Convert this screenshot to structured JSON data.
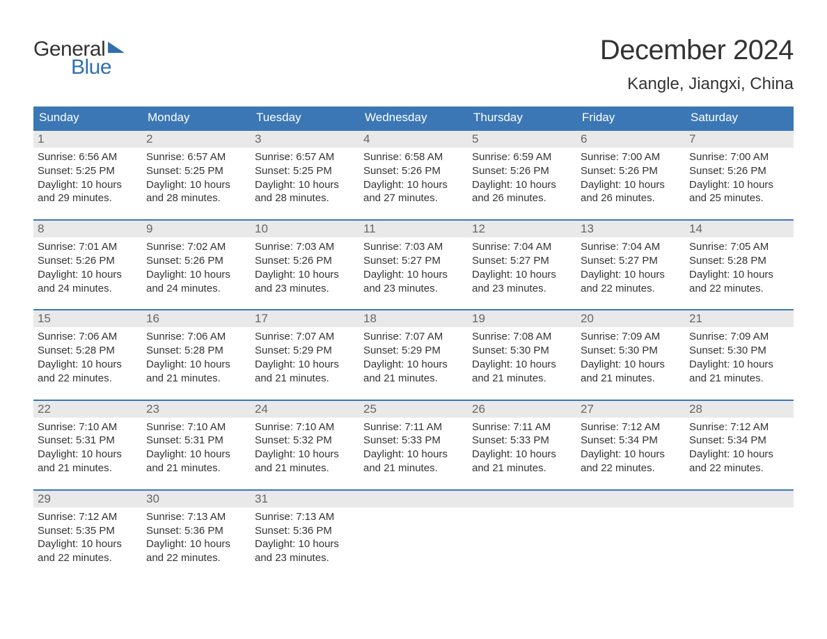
{
  "branding": {
    "logo_word1": "General",
    "logo_word2": "Blue"
  },
  "header": {
    "month_title": "December 2024",
    "location": "Kangle, Jiangxi, China"
  },
  "colors": {
    "header_bar": "#3b77b5",
    "header_text": "#ffffff",
    "day_number_bg": "#e9e9e9",
    "day_number_text": "#666666",
    "body_text": "#333333",
    "logo_accent": "#2f6fae",
    "week_border": "#3b77b5",
    "background": "#ffffff"
  },
  "typography": {
    "month_title_fontsize": 40,
    "location_fontsize": 24,
    "weekday_fontsize": 17,
    "day_number_fontsize": 17,
    "body_fontsize": 15,
    "logo_fontsize": 30
  },
  "weekdays": [
    "Sunday",
    "Monday",
    "Tuesday",
    "Wednesday",
    "Thursday",
    "Friday",
    "Saturday"
  ],
  "weeks": [
    [
      {
        "day": "1",
        "sunrise": "Sunrise: 6:56 AM",
        "sunset": "Sunset: 5:25 PM",
        "daylight1": "Daylight: 10 hours",
        "daylight2": "and 29 minutes."
      },
      {
        "day": "2",
        "sunrise": "Sunrise: 6:57 AM",
        "sunset": "Sunset: 5:25 PM",
        "daylight1": "Daylight: 10 hours",
        "daylight2": "and 28 minutes."
      },
      {
        "day": "3",
        "sunrise": "Sunrise: 6:57 AM",
        "sunset": "Sunset: 5:25 PM",
        "daylight1": "Daylight: 10 hours",
        "daylight2": "and 28 minutes."
      },
      {
        "day": "4",
        "sunrise": "Sunrise: 6:58 AM",
        "sunset": "Sunset: 5:26 PM",
        "daylight1": "Daylight: 10 hours",
        "daylight2": "and 27 minutes."
      },
      {
        "day": "5",
        "sunrise": "Sunrise: 6:59 AM",
        "sunset": "Sunset: 5:26 PM",
        "daylight1": "Daylight: 10 hours",
        "daylight2": "and 26 minutes."
      },
      {
        "day": "6",
        "sunrise": "Sunrise: 7:00 AM",
        "sunset": "Sunset: 5:26 PM",
        "daylight1": "Daylight: 10 hours",
        "daylight2": "and 26 minutes."
      },
      {
        "day": "7",
        "sunrise": "Sunrise: 7:00 AM",
        "sunset": "Sunset: 5:26 PM",
        "daylight1": "Daylight: 10 hours",
        "daylight2": "and 25 minutes."
      }
    ],
    [
      {
        "day": "8",
        "sunrise": "Sunrise: 7:01 AM",
        "sunset": "Sunset: 5:26 PM",
        "daylight1": "Daylight: 10 hours",
        "daylight2": "and 24 minutes."
      },
      {
        "day": "9",
        "sunrise": "Sunrise: 7:02 AM",
        "sunset": "Sunset: 5:26 PM",
        "daylight1": "Daylight: 10 hours",
        "daylight2": "and 24 minutes."
      },
      {
        "day": "10",
        "sunrise": "Sunrise: 7:03 AM",
        "sunset": "Sunset: 5:26 PM",
        "daylight1": "Daylight: 10 hours",
        "daylight2": "and 23 minutes."
      },
      {
        "day": "11",
        "sunrise": "Sunrise: 7:03 AM",
        "sunset": "Sunset: 5:27 PM",
        "daylight1": "Daylight: 10 hours",
        "daylight2": "and 23 minutes."
      },
      {
        "day": "12",
        "sunrise": "Sunrise: 7:04 AM",
        "sunset": "Sunset: 5:27 PM",
        "daylight1": "Daylight: 10 hours",
        "daylight2": "and 23 minutes."
      },
      {
        "day": "13",
        "sunrise": "Sunrise: 7:04 AM",
        "sunset": "Sunset: 5:27 PM",
        "daylight1": "Daylight: 10 hours",
        "daylight2": "and 22 minutes."
      },
      {
        "day": "14",
        "sunrise": "Sunrise: 7:05 AM",
        "sunset": "Sunset: 5:28 PM",
        "daylight1": "Daylight: 10 hours",
        "daylight2": "and 22 minutes."
      }
    ],
    [
      {
        "day": "15",
        "sunrise": "Sunrise: 7:06 AM",
        "sunset": "Sunset: 5:28 PM",
        "daylight1": "Daylight: 10 hours",
        "daylight2": "and 22 minutes."
      },
      {
        "day": "16",
        "sunrise": "Sunrise: 7:06 AM",
        "sunset": "Sunset: 5:28 PM",
        "daylight1": "Daylight: 10 hours",
        "daylight2": "and 21 minutes."
      },
      {
        "day": "17",
        "sunrise": "Sunrise: 7:07 AM",
        "sunset": "Sunset: 5:29 PM",
        "daylight1": "Daylight: 10 hours",
        "daylight2": "and 21 minutes."
      },
      {
        "day": "18",
        "sunrise": "Sunrise: 7:07 AM",
        "sunset": "Sunset: 5:29 PM",
        "daylight1": "Daylight: 10 hours",
        "daylight2": "and 21 minutes."
      },
      {
        "day": "19",
        "sunrise": "Sunrise: 7:08 AM",
        "sunset": "Sunset: 5:30 PM",
        "daylight1": "Daylight: 10 hours",
        "daylight2": "and 21 minutes."
      },
      {
        "day": "20",
        "sunrise": "Sunrise: 7:09 AM",
        "sunset": "Sunset: 5:30 PM",
        "daylight1": "Daylight: 10 hours",
        "daylight2": "and 21 minutes."
      },
      {
        "day": "21",
        "sunrise": "Sunrise: 7:09 AM",
        "sunset": "Sunset: 5:30 PM",
        "daylight1": "Daylight: 10 hours",
        "daylight2": "and 21 minutes."
      }
    ],
    [
      {
        "day": "22",
        "sunrise": "Sunrise: 7:10 AM",
        "sunset": "Sunset: 5:31 PM",
        "daylight1": "Daylight: 10 hours",
        "daylight2": "and 21 minutes."
      },
      {
        "day": "23",
        "sunrise": "Sunrise: 7:10 AM",
        "sunset": "Sunset: 5:31 PM",
        "daylight1": "Daylight: 10 hours",
        "daylight2": "and 21 minutes."
      },
      {
        "day": "24",
        "sunrise": "Sunrise: 7:10 AM",
        "sunset": "Sunset: 5:32 PM",
        "daylight1": "Daylight: 10 hours",
        "daylight2": "and 21 minutes."
      },
      {
        "day": "25",
        "sunrise": "Sunrise: 7:11 AM",
        "sunset": "Sunset: 5:33 PM",
        "daylight1": "Daylight: 10 hours",
        "daylight2": "and 21 minutes."
      },
      {
        "day": "26",
        "sunrise": "Sunrise: 7:11 AM",
        "sunset": "Sunset: 5:33 PM",
        "daylight1": "Daylight: 10 hours",
        "daylight2": "and 21 minutes."
      },
      {
        "day": "27",
        "sunrise": "Sunrise: 7:12 AM",
        "sunset": "Sunset: 5:34 PM",
        "daylight1": "Daylight: 10 hours",
        "daylight2": "and 22 minutes."
      },
      {
        "day": "28",
        "sunrise": "Sunrise: 7:12 AM",
        "sunset": "Sunset: 5:34 PM",
        "daylight1": "Daylight: 10 hours",
        "daylight2": "and 22 minutes."
      }
    ],
    [
      {
        "day": "29",
        "sunrise": "Sunrise: 7:12 AM",
        "sunset": "Sunset: 5:35 PM",
        "daylight1": "Daylight: 10 hours",
        "daylight2": "and 22 minutes."
      },
      {
        "day": "30",
        "sunrise": "Sunrise: 7:13 AM",
        "sunset": "Sunset: 5:36 PM",
        "daylight1": "Daylight: 10 hours",
        "daylight2": "and 22 minutes."
      },
      {
        "day": "31",
        "sunrise": "Sunrise: 7:13 AM",
        "sunset": "Sunset: 5:36 PM",
        "daylight1": "Daylight: 10 hours",
        "daylight2": "and 23 minutes."
      },
      {
        "empty": true
      },
      {
        "empty": true
      },
      {
        "empty": true
      },
      {
        "empty": true
      }
    ]
  ]
}
